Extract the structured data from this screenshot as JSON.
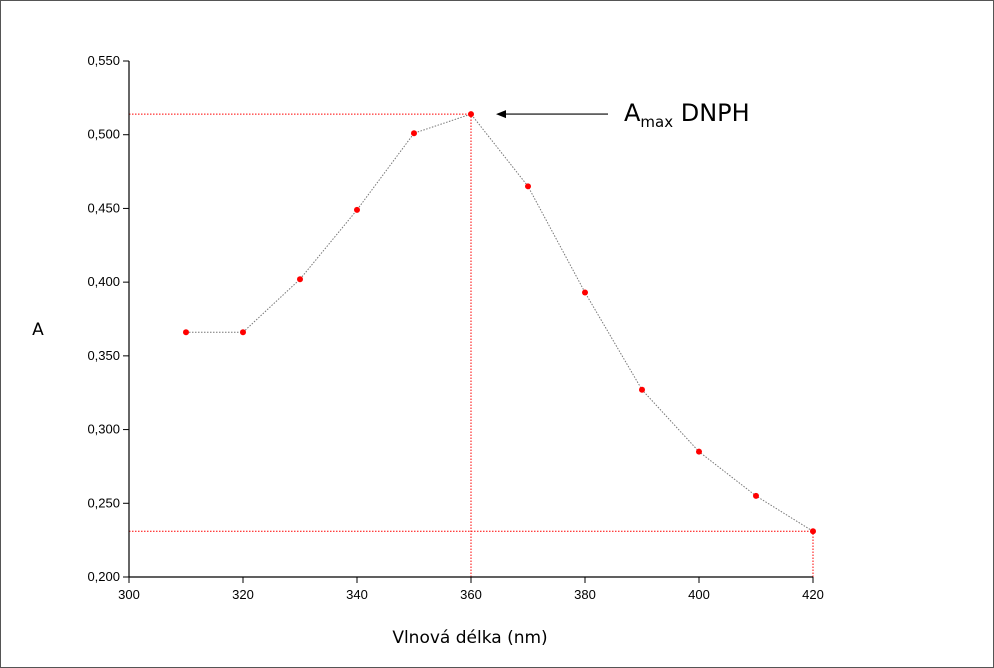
{
  "chart_data": {
    "type": "line",
    "title": "",
    "xlabel": "Vlnová délka (nm)",
    "ylabel": "A",
    "xlim": [
      300,
      420
    ],
    "ylim": [
      0.2,
      0.55
    ],
    "x_ticks": [
      300,
      320,
      340,
      360,
      380,
      400,
      420
    ],
    "x_tick_labels": [
      "300",
      "320",
      "340",
      "360",
      "380",
      "400",
      "420"
    ],
    "y_ticks": [
      0.2,
      0.25,
      0.3,
      0.35,
      0.4,
      0.45,
      0.5,
      0.55
    ],
    "y_tick_labels": [
      "0,200",
      "0,250",
      "0,300",
      "0,350",
      "0,400",
      "0,450",
      "0,500",
      "0,550"
    ],
    "grid": false,
    "legend": "none",
    "series": [
      {
        "x": [
          310,
          320,
          330,
          340,
          350,
          360,
          370,
          380,
          390,
          400,
          410,
          420
        ],
        "y": [
          0.366,
          0.366,
          0.402,
          0.449,
          0.501,
          0.514,
          0.465,
          0.393,
          0.327,
          0.285,
          0.255,
          0.231
        ],
        "line_color": "#777777",
        "line_style": "dotted",
        "marker_color": "#ff0000"
      }
    ],
    "reference_lines": [
      {
        "axis": "y",
        "value": 0.514,
        "x_from": 300,
        "x_to": 360,
        "color": "#ff0000",
        "style": "dotted"
      },
      {
        "axis": "x",
        "value": 360,
        "y_from": 0.2,
        "y_to": 0.514,
        "color": "#ff0000",
        "style": "dotted"
      },
      {
        "axis": "y",
        "value": 0.231,
        "x_from": 300,
        "x_to": 420,
        "color": "#ff0000",
        "style": "dotted"
      },
      {
        "axis": "x",
        "value": 420,
        "y_from": 0.2,
        "y_to": 0.231,
        "color": "#ff0000",
        "style": "dotted"
      }
    ],
    "annotations": [
      {
        "text_main": "A",
        "text_sub": "max",
        "text_after": " DNPH",
        "points_to": {
          "x": 360,
          "y": 0.514
        }
      }
    ]
  }
}
